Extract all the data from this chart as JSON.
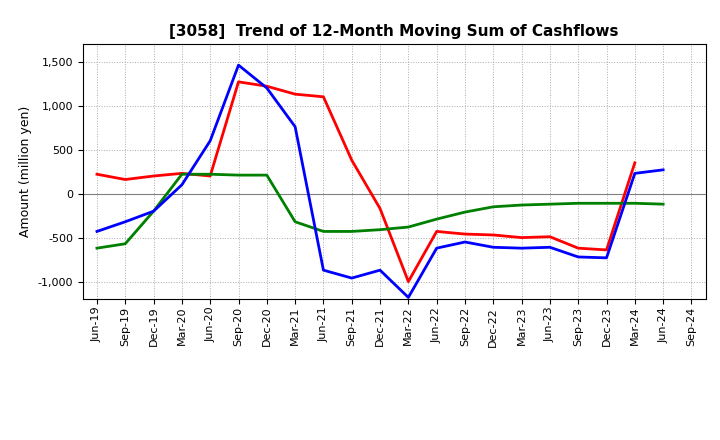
{
  "title": "[3058]  Trend of 12-Month Moving Sum of Cashflows",
  "ylabel": "Amount (million yen)",
  "xlabels": [
    "Jun-19",
    "Sep-19",
    "Dec-19",
    "Mar-20",
    "Jun-20",
    "Sep-20",
    "Dec-20",
    "Mar-21",
    "Jun-21",
    "Sep-21",
    "Dec-21",
    "Mar-22",
    "Jun-22",
    "Sep-22",
    "Dec-22",
    "Mar-23",
    "Jun-23",
    "Sep-23",
    "Dec-23",
    "Mar-24",
    "Jun-24",
    "Sep-24"
  ],
  "operating_cashflow": [
    220,
    160,
    200,
    230,
    200,
    1270,
    1220,
    1130,
    1100,
    380,
    -170,
    -1000,
    -430,
    -460,
    -470,
    -500,
    -490,
    -620,
    -640,
    350,
    null,
    null
  ],
  "investing_cashflow": [
    -620,
    -570,
    -200,
    220,
    220,
    210,
    210,
    -320,
    -430,
    -430,
    -410,
    -380,
    -290,
    -210,
    -150,
    -130,
    -120,
    -110,
    -110,
    -110,
    -120,
    null
  ],
  "free_cashflow": [
    -430,
    -320,
    -200,
    100,
    600,
    1460,
    1200,
    760,
    -870,
    -960,
    -870,
    -1180,
    -620,
    -550,
    -610,
    -620,
    -610,
    -720,
    -730,
    230,
    270,
    null
  ],
  "operating_color": "#ff0000",
  "investing_color": "#008000",
  "free_color": "#0000ff",
  "ylim": [
    -1200,
    1700
  ],
  "yticks": [
    -1000,
    -500,
    0,
    500,
    1000,
    1500
  ],
  "background_color": "#ffffff",
  "grid_color": "#aaaaaa",
  "linewidth": 2.0,
  "title_fontsize": 11,
  "ylabel_fontsize": 9,
  "tick_fontsize": 8,
  "legend_fontsize": 9
}
